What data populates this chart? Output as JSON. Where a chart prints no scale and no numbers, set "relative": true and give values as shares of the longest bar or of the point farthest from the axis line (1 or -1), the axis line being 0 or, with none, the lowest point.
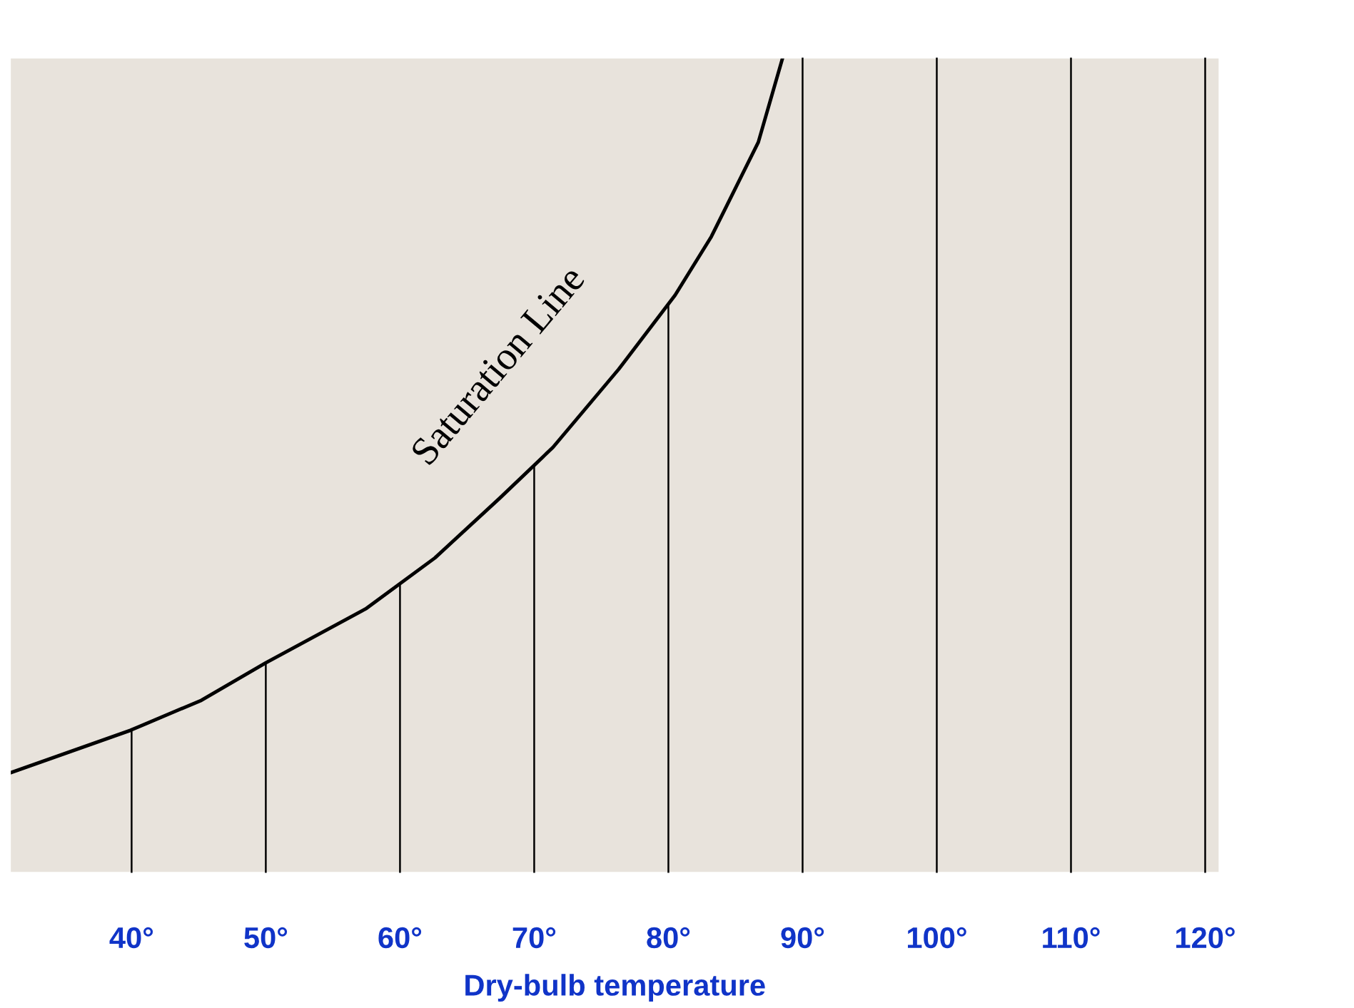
{
  "chart_data": {
    "type": "line",
    "relative": true,
    "xlabel": "Dry-bulb temperature",
    "x": [
      31,
      39.9,
      45.2,
      50,
      57.5,
      62.6,
      67.4,
      71.4,
      76.3,
      80.5,
      83.2,
      86.7,
      88.5
    ],
    "series": [
      {
        "color": "#000000",
        "values": [
          0.122,
          0.174,
          0.211,
          0.257,
          0.324,
          0.386,
          0.459,
          0.522,
          0.618,
          0.709,
          0.781,
          0.897,
          1.0
        ]
      }
    ],
    "xlim": [
      31,
      121
    ],
    "xticks": [
      {
        "value": 40,
        "label": "40°"
      },
      {
        "value": 50,
        "label": "50°"
      },
      {
        "value": 60,
        "label": "60°"
      },
      {
        "value": 70,
        "label": "70°"
      },
      {
        "value": 80,
        "label": "80°"
      },
      {
        "value": 90,
        "label": "90°"
      },
      {
        "value": 100,
        "label": "100°"
      },
      {
        "value": 110,
        "label": "110°"
      },
      {
        "value": 120,
        "label": "120°"
      }
    ],
    "ref_lines": [
      {
        "axis": "x",
        "value": 40,
        "color": "#000000"
      },
      {
        "axis": "x",
        "value": 50,
        "color": "#000000"
      },
      {
        "axis": "x",
        "value": 60,
        "color": "#000000"
      },
      {
        "axis": "x",
        "value": 70,
        "color": "#000000"
      },
      {
        "axis": "x",
        "value": 80,
        "color": "#000000"
      },
      {
        "axis": "x",
        "value": 90,
        "color": "#000000"
      },
      {
        "axis": "x",
        "value": 100,
        "color": "#000000"
      },
      {
        "axis": "x",
        "value": 110,
        "color": "#000000"
      },
      {
        "axis": "x",
        "value": 120,
        "color": "#000000"
      }
    ],
    "annotations": [
      "Saturation Line"
    ],
    "grid": false,
    "legend": false,
    "marker": "none",
    "line_style": "solid"
  }
}
